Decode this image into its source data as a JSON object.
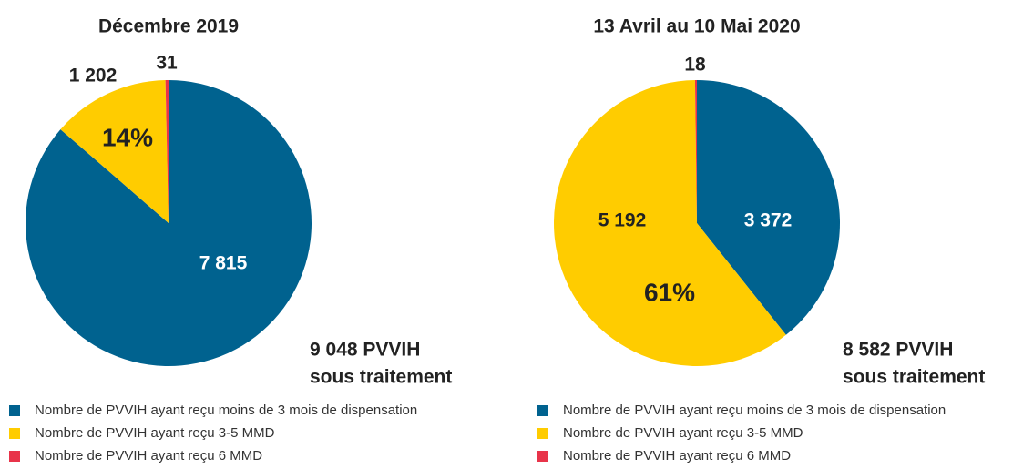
{
  "chart_data": [
    {
      "type": "pie",
      "title": "Décembre 2019",
      "categories": [
        "Nombre de PVVIH ayant reçu moins de 3 mois de dispensation",
        "Nombre de PVVIH ayant reçu 3-5 MMD",
        "Nombre de PVVIH ayant reçu 6 MMD"
      ],
      "values": [
        7815,
        1202,
        31
      ],
      "value_labels": [
        "7 815",
        "1 202",
        "31"
      ],
      "colors": [
        "#00628f",
        "#ffcc00",
        "#e8344a"
      ],
      "percent_label": "14%",
      "total_label": [
        "9 048 PVVIH",
        "sous traitement"
      ]
    },
    {
      "type": "pie",
      "title": "13 Avril au 10 Mai 2020",
      "categories": [
        "Nombre de PVVIH ayant reçu moins de 3 mois de dispensation",
        "Nombre de PVVIH ayant reçu 3-5 MMD",
        "Nombre de PVVIH ayant reçu 6 MMD"
      ],
      "values": [
        3372,
        5192,
        18
      ],
      "value_labels": [
        "3 372",
        "5 192",
        "18"
      ],
      "colors": [
        "#00628f",
        "#ffcc00",
        "#e8344a"
      ],
      "percent_label": "61%",
      "total_label": [
        "8 582 PVVIH",
        "sous traitement"
      ]
    }
  ]
}
